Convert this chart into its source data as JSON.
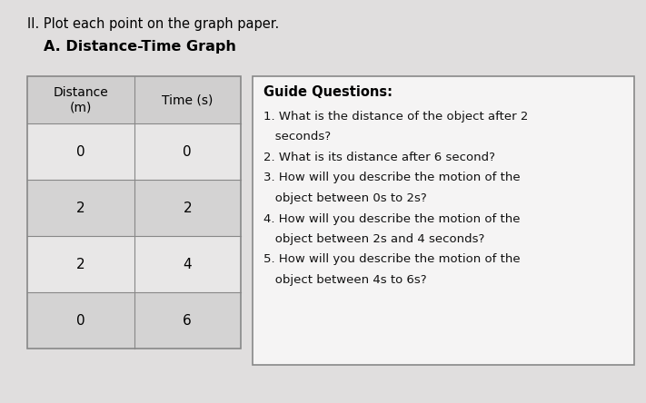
{
  "main_title": "II. Plot each point on the graph paper.",
  "subtitle": "A. Distance-Time Graph",
  "table_headers": [
    "Distance\n(m)",
    "Time (s)"
  ],
  "table_rows": [
    [
      "0",
      "0"
    ],
    [
      "2",
      "2"
    ],
    [
      "2",
      "4"
    ],
    [
      "0",
      "6"
    ]
  ],
  "guide_title": "Guide Questions:",
  "guide_questions": [
    "1. What is the distance of the object after 2\n   seconds?",
    "2. What is its distance after 6 second?",
    "3. How will you describe the motion of the\n   object between 0s to 2s?",
    "4. How will you describe the motion of the\n   object between 2s and 4 seconds?",
    "5. How will you describe the motion of the\n   object between 4s to 6s?"
  ],
  "bg_color": "#e0dede",
  "table_header_bg": "#d0cfcf",
  "table_row_bg": "#e8e7e7",
  "table_alt_bg": "#d4d3d3",
  "box_bg": "#f5f4f4",
  "title_color": "#000000",
  "text_color": "#111111",
  "border_color": "#888888"
}
